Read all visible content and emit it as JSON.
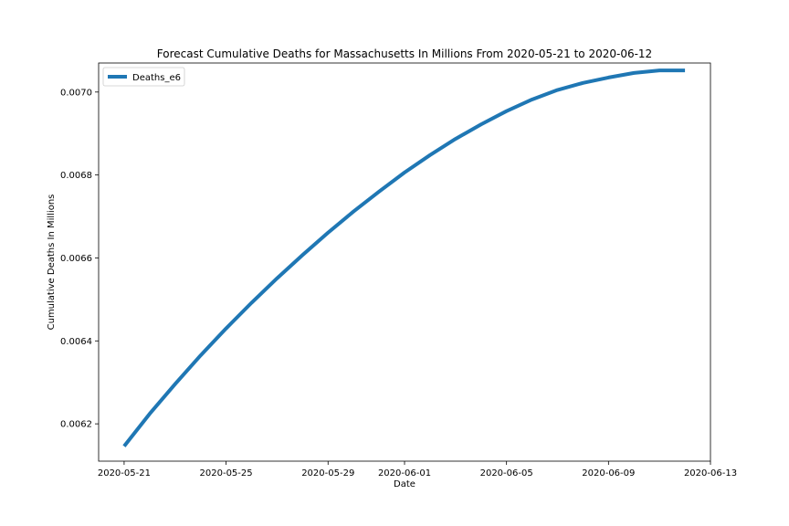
{
  "chart_data": {
    "type": "line",
    "title": "Forecast Cumulative Deaths for Massachusetts In Millions From 2020-05-21 to 2020-06-12",
    "xlabel": "Date",
    "ylabel": "Cumulative Deaths In Millions",
    "xlim": [
      "2020-05-20",
      "2020-06-13"
    ],
    "ylim": [
      0.00611,
      0.00707
    ],
    "x_ticks": [
      "2020-05-21",
      "2020-05-25",
      "2020-05-29",
      "2020-06-01",
      "2020-06-05",
      "2020-06-09",
      "2020-06-13"
    ],
    "y_ticks": [
      0.0062,
      0.0064,
      0.0066,
      0.0068,
      0.007
    ],
    "y_tick_labels": [
      "0.0062",
      "0.0064",
      "0.0066",
      "0.0068",
      "0.0070"
    ],
    "legend": {
      "placement": "upper-left"
    },
    "grid": false,
    "series": [
      {
        "name": "Deaths_e6",
        "color": "#1f77b4",
        "x": [
          "2020-05-21",
          "2020-05-22",
          "2020-05-23",
          "2020-05-24",
          "2020-05-25",
          "2020-05-26",
          "2020-05-27",
          "2020-05-28",
          "2020-05-29",
          "2020-05-30",
          "2020-05-31",
          "2020-06-01",
          "2020-06-02",
          "2020-06-03",
          "2020-06-04",
          "2020-06-05",
          "2020-06-06",
          "2020-06-07",
          "2020-06-08",
          "2020-06-09",
          "2020-06-10",
          "2020-06-11",
          "2020-06-12"
        ],
        "values": [
          0.006146,
          0.006224,
          0.006296,
          0.006365,
          0.00643,
          0.006492,
          0.006551,
          0.006607,
          0.006661,
          0.006712,
          0.00676,
          0.006806,
          0.006848,
          0.006887,
          0.006922,
          0.006954,
          0.006982,
          0.007005,
          0.007022,
          0.007035,
          0.007046,
          0.007052,
          0.007052
        ]
      }
    ]
  }
}
